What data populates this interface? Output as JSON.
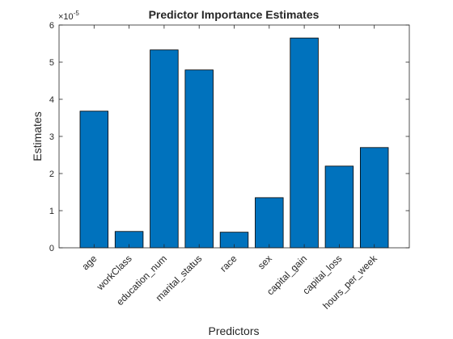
{
  "chart_data": {
    "type": "bar",
    "title": "Predictor Importance Estimates",
    "xlabel": "Predictors",
    "ylabel": "Estimates",
    "exponent_label": "×10",
    "exponent_power": "-5",
    "categories": [
      "age",
      "workClass",
      "education_num",
      "marital_status",
      "race",
      "sex",
      "capital_gain",
      "capital_loss",
      "hours_per_week"
    ],
    "values": [
      3.68,
      0.44,
      5.33,
      4.79,
      0.42,
      1.35,
      5.65,
      2.2,
      2.7
    ],
    "ylim": [
      0,
      6
    ],
    "yticks": [
      0,
      1,
      2,
      3,
      4,
      5,
      6
    ],
    "bar_color": "#0072BD",
    "grid": false
  }
}
